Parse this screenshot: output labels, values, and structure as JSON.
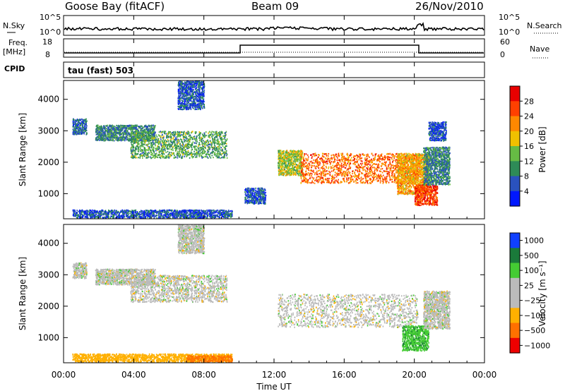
{
  "header": {
    "station": "Goose Bay (fitACF)",
    "beam": "Beam 09",
    "date": "26/Nov/2010"
  },
  "strip_labels": {
    "nsky": "N.Sky",
    "nsky_ticks": [
      "10^5",
      "10^0"
    ],
    "nsearch": "N.Search",
    "nsearch_ticks": [
      "10^5",
      "10^0"
    ],
    "freq": "Freq.",
    "freq_unit": "[MHz]",
    "freq_ticks": [
      "18",
      "8"
    ],
    "nave": "Nave",
    "nave_ticks": [
      "60",
      "0"
    ],
    "cpid": "CPID",
    "cpid_value": "tau (fast) 503"
  },
  "colors": {
    "power_scale": [
      "#0018ff",
      "#2a52be",
      "#2e8b57",
      "#66bb44",
      "#f0c000",
      "#ff8800",
      "#ff4000",
      "#e80000"
    ],
    "velocity_scale": [
      "#1040ff",
      "#1a7a3a",
      "#44cc33",
      "#bbbbbb",
      "#bbbbbb",
      "#ffb000",
      "#ff7000",
      "#ee0000"
    ],
    "grey_scatter": "#b8b8b8"
  },
  "chart_data": [
    {
      "type": "heatmap",
      "panel": "power",
      "ylabel": "Slant Range [km]",
      "xlabel": "",
      "x_ticks": [
        "00:00",
        "04:00",
        "08:00",
        "12:00",
        "16:00",
        "20:00",
        "00:00"
      ],
      "xlim_hours": [
        0,
        24
      ],
      "ylim": [
        200,
        4600
      ],
      "y_ticks": [
        1000,
        2000,
        3000,
        4000
      ],
      "colorbar": {
        "label": "Power [dB]",
        "ticks": [
          "4",
          "8",
          "12",
          "16",
          "20",
          "24",
          "28"
        ],
        "range": [
          0,
          32
        ]
      },
      "regions": [
        {
          "t0": 0.5,
          "t1": 9.6,
          "r0": 250,
          "r1": 500,
          "power": 6
        },
        {
          "t0": 0.5,
          "t1": 1.3,
          "r0": 2900,
          "r1": 3400,
          "power": 7
        },
        {
          "t0": 1.8,
          "t1": 5.2,
          "r0": 2700,
          "r1": 3200,
          "power": 9
        },
        {
          "t0": 3.8,
          "t1": 9.3,
          "r0": 2150,
          "r1": 3000,
          "power": 12
        },
        {
          "t0": 6.5,
          "t1": 8.0,
          "r0": 3700,
          "r1": 4600,
          "power": 6
        },
        {
          "t0": 10.3,
          "t1": 11.5,
          "r0": 700,
          "r1": 1200,
          "power": 6
        },
        {
          "t0": 12.2,
          "t1": 13.6,
          "r0": 1600,
          "r1": 2400,
          "power": 16
        },
        {
          "t0": 13.5,
          "t1": 20.2,
          "r0": 1350,
          "r1": 2300,
          "power": 24
        },
        {
          "t0": 19.0,
          "t1": 20.8,
          "r0": 1000,
          "r1": 2300,
          "power": 20
        },
        {
          "t0": 20.0,
          "t1": 21.3,
          "r0": 650,
          "r1": 1300,
          "power": 27
        },
        {
          "t0": 20.5,
          "t1": 22.0,
          "r0": 1300,
          "r1": 2500,
          "power": 9
        },
        {
          "t0": 20.8,
          "t1": 21.8,
          "r0": 2700,
          "r1": 3300,
          "power": 5
        }
      ]
    },
    {
      "type": "heatmap",
      "panel": "velocity",
      "ylabel": "Slant Range [km]",
      "xlabel": "Time UT",
      "x_ticks": [
        "00:00",
        "04:00",
        "08:00",
        "12:00",
        "16:00",
        "20:00",
        "00:00"
      ],
      "xlim_hours": [
        0,
        24
      ],
      "ylim": [
        200,
        4600
      ],
      "y_ticks": [
        1000,
        2000,
        3000,
        4000
      ],
      "colorbar": {
        "label": "Velocity [m s⁻¹]",
        "ticks": [
          "1000",
          "500",
          "100",
          "25",
          "−25",
          "−100",
          "−500",
          "−1000"
        ]
      },
      "regions": [
        {
          "t0": 0.5,
          "t1": 9.6,
          "r0": 250,
          "r1": 500,
          "velocity": -60
        },
        {
          "t0": 7.0,
          "t1": 9.6,
          "r0": 250,
          "r1": 450,
          "velocity": -120
        },
        {
          "t0": 0.5,
          "t1": 1.3,
          "r0": 2900,
          "r1": 3400,
          "velocity": 0
        },
        {
          "t0": 1.8,
          "t1": 5.2,
          "r0": 2700,
          "r1": 3200,
          "velocity": 0
        },
        {
          "t0": 3.8,
          "t1": 9.3,
          "r0": 2150,
          "r1": 3000,
          "velocity": 0
        },
        {
          "t0": 6.5,
          "t1": 8.0,
          "r0": 3700,
          "r1": 4600,
          "velocity": 0
        },
        {
          "t0": 12.2,
          "t1": 20.2,
          "r0": 1350,
          "r1": 2400,
          "velocity": 0
        },
        {
          "t0": 19.3,
          "t1": 20.8,
          "r0": 600,
          "r1": 1400,
          "velocity": 80
        },
        {
          "t0": 20.5,
          "t1": 22.0,
          "r0": 1300,
          "r1": 2500,
          "velocity": 0
        }
      ]
    }
  ]
}
